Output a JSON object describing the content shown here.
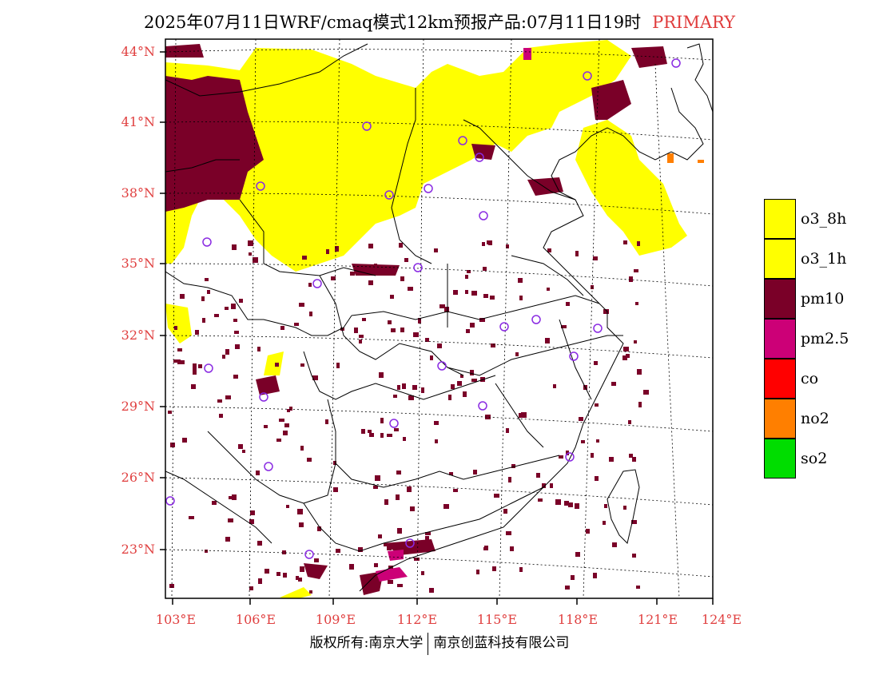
{
  "header": {
    "title": "2025年07月11日WRF/cmaq模式12km预报产品:07月11日19时",
    "mode": "PRIMARY"
  },
  "axes": {
    "lat_labels": [
      "44°N",
      "41°N",
      "38°N",
      "35°N",
      "32°N",
      "29°N",
      "26°N",
      "23°N"
    ],
    "lon_labels": [
      "103°E",
      "106°E",
      "109°E",
      "112°E",
      "115°E",
      "118°E",
      "121°E",
      "124°E"
    ],
    "label_color": "#e04040"
  },
  "legend": {
    "items": [
      {
        "label": "o3_8h",
        "color": "#ffff00"
      },
      {
        "label": "o3_1h",
        "color": "#ffff00"
      },
      {
        "label": "pm10",
        "color": "#7a0028"
      },
      {
        "label": "pm2.5",
        "color": "#cc0077"
      },
      {
        "label": "co",
        "color": "#ff0000"
      },
      {
        "label": "no2",
        "color": "#ff7f00"
      },
      {
        "label": "so2",
        "color": "#00dd00"
      }
    ]
  },
  "footer": {
    "left": "版权所有:南京大学",
    "right": "南京创蓝科技有限公司"
  }
}
